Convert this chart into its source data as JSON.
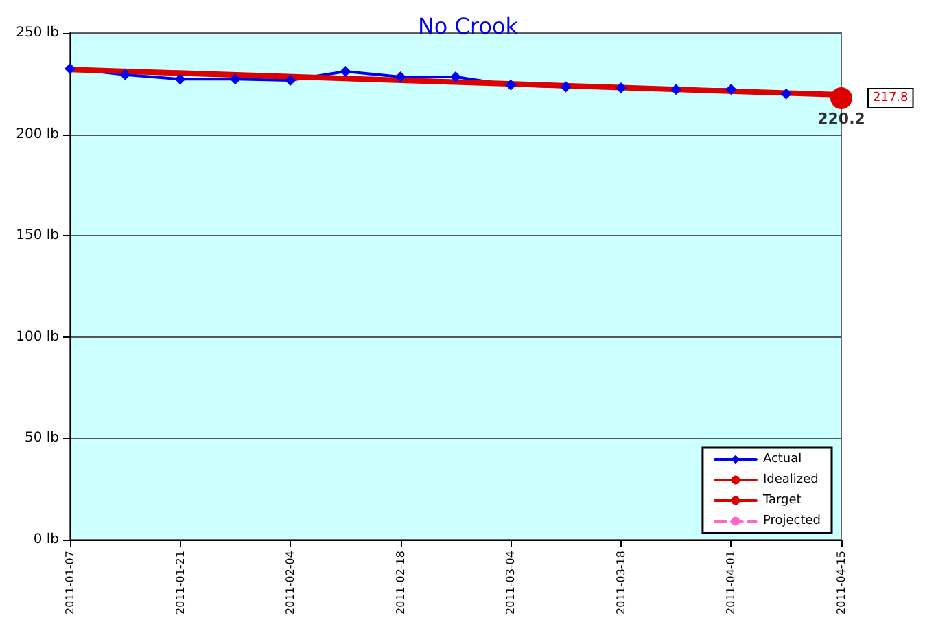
{
  "chart_data": {
    "type": "line",
    "title": "No Crook",
    "xlim": [
      "2011-01-07",
      "2011-04-15"
    ],
    "xticks": [
      "2011-01-07",
      "2011-01-21",
      "2011-02-04",
      "2011-02-18",
      "2011-03-04",
      "2011-03-18",
      "2011-04-01",
      "2011-04-15"
    ],
    "ylim": [
      0,
      250
    ],
    "yticks": [
      {
        "value": 0,
        "label": "0 lb"
      },
      {
        "value": 50,
        "label": "50 lb"
      },
      {
        "value": 100,
        "label": "100 lb"
      },
      {
        "value": 150,
        "label": "150 lb"
      },
      {
        "value": 200,
        "label": "200 lb"
      },
      {
        "value": 250,
        "label": "250 lb"
      }
    ],
    "grid": "y",
    "legend": "bottom right",
    "series": [
      {
        "name": "Actual",
        "color": "#0000ee",
        "marker": "diamond",
        "x": [
          "2011-01-07",
          "2011-01-14",
          "2011-01-21",
          "2011-01-28",
          "2011-02-04",
          "2011-02-11",
          "2011-02-18",
          "2011-02-25",
          "2011-03-04",
          "2011-03-11",
          "2011-03-18",
          "2011-03-25",
          "2011-04-01",
          "2011-04-08"
        ],
        "values": [
          232.4,
          229.4,
          227.2,
          227.2,
          226.6,
          231.0,
          228.3,
          228.3,
          224.3,
          223.4,
          222.9,
          222.1,
          222.1,
          219.9
        ]
      },
      {
        "name": "Idealized",
        "color": "#dd0000",
        "marker": "none",
        "x": [
          "2011-01-07",
          "2011-04-15"
        ],
        "values": [
          232.0,
          219.5
        ]
      },
      {
        "name": "Target",
        "color": "#dd0000",
        "marker": "circle",
        "x": [
          "2011-04-15"
        ],
        "values": [
          217.8
        ],
        "value_labels": [
          "217.8"
        ]
      },
      {
        "name": "Projected",
        "color": "#ff66cc",
        "marker": "none",
        "line_style": "dashed"
      }
    ],
    "annotations": [
      {
        "text": "220.2",
        "x": "2011-04-15",
        "y": 220.2
      }
    ]
  }
}
